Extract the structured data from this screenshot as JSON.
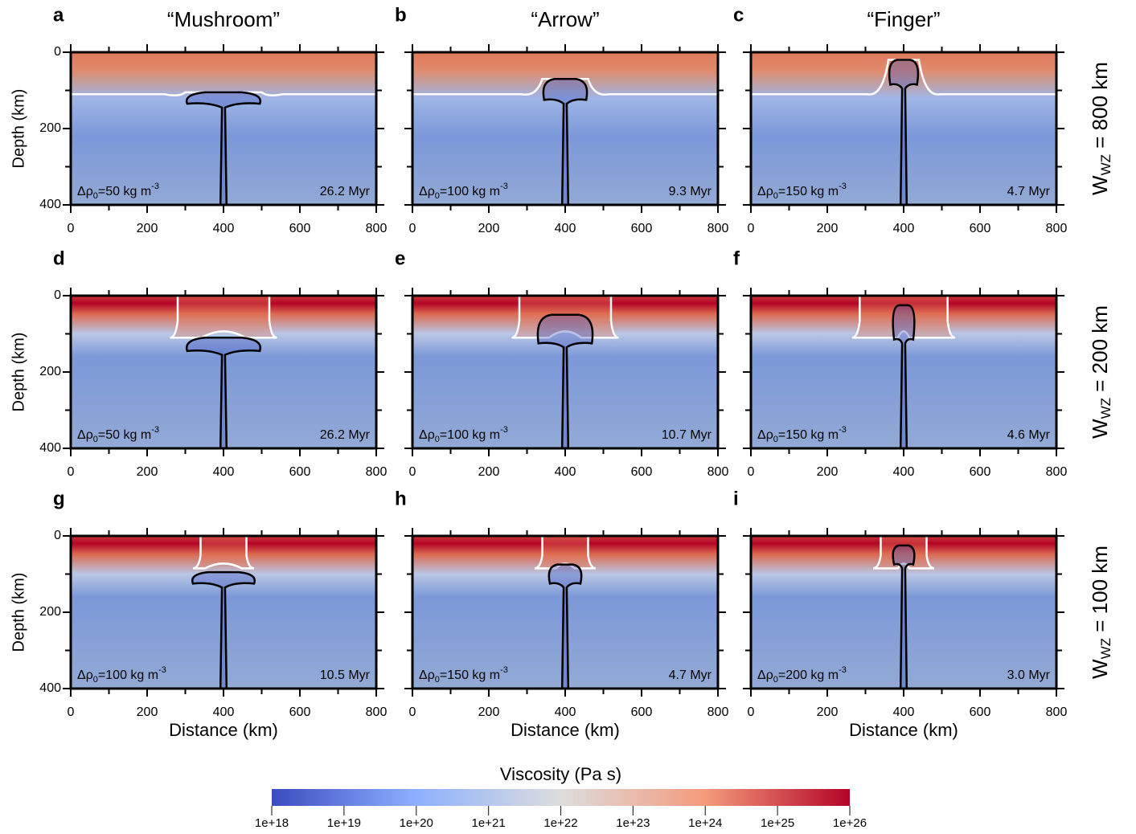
{
  "columns": [
    "“Mushroom”",
    "“Arrow”",
    "“Finger”"
  ],
  "rows": [
    {
      "main": "W",
      "sub": "WZ",
      "rest": " = 800 km"
    },
    {
      "main": "W",
      "sub": "WZ",
      "rest": " = 200 km"
    },
    {
      "main": "W",
      "sub": "WZ",
      "rest": " = 100 km"
    }
  ],
  "axes": {
    "xlabel": "Distance (km)",
    "ylabel": "Depth (km)",
    "xlim": [
      0,
      800
    ],
    "ylim": [
      0,
      400
    ],
    "xticks": [
      0,
      200,
      400,
      600,
      800
    ],
    "xticks_minor": [
      100,
      300,
      500,
      700
    ],
    "yticks": [
      0,
      200,
      400
    ],
    "yticks_minor": [
      100,
      300
    ]
  },
  "panels": [
    {
      "letter": "a",
      "drho": {
        "symbol": "Δρ",
        "sub": "0",
        "text": "=50 kg m",
        "sup": "-3"
      },
      "time": "26.2 Myr"
    },
    {
      "letter": "b",
      "drho": {
        "symbol": "Δρ",
        "sub": "0",
        "text": "=100 kg m",
        "sup": "-3"
      },
      "time": "9.3 Myr"
    },
    {
      "letter": "c",
      "drho": {
        "symbol": "Δρ",
        "sub": "0",
        "text": "=150 kg m",
        "sup": "-3"
      },
      "time": "4.7 Myr"
    },
    {
      "letter": "d",
      "drho": {
        "symbol": "Δρ",
        "sub": "0",
        "text": "=50 kg m",
        "sup": "-3"
      },
      "time": "26.2 Myr"
    },
    {
      "letter": "e",
      "drho": {
        "symbol": "Δρ",
        "sub": "0",
        "text": "=100 kg m",
        "sup": "-3"
      },
      "time": "10.7 Myr"
    },
    {
      "letter": "f",
      "drho": {
        "symbol": "Δρ",
        "sub": "0",
        "text": "=150 kg m",
        "sup": "-3"
      },
      "time": "4.6 Myr"
    },
    {
      "letter": "g",
      "drho": {
        "symbol": "Δρ",
        "sub": "0",
        "text": "=100 kg m",
        "sup": "-3"
      },
      "time": "10.5 Myr"
    },
    {
      "letter": "h",
      "drho": {
        "symbol": "Δρ",
        "sub": "0",
        "text": "=150 kg m",
        "sup": "-3"
      },
      "time": "4.7 Myr"
    },
    {
      "letter": "i",
      "drho": {
        "symbol": "Δρ",
        "sub": "0",
        "text": "=200 kg m",
        "sup": "-3"
      },
      "time": "3.0 Myr"
    }
  ],
  "colorbar": {
    "title": "Viscosity (Pa s)",
    "log": true,
    "lim": [
      1e+18,
      1e+26
    ],
    "ticks": [
      {
        "value": 1e+18,
        "label": "1e+18"
      },
      {
        "value": 1e+19,
        "label": "1e+19"
      },
      {
        "value": 1e+20,
        "label": "1e+20"
      },
      {
        "value": 1e+21,
        "label": "1e+21"
      },
      {
        "value": 1e+22,
        "label": "1e+22"
      },
      {
        "value": 1e+23,
        "label": "1e+23"
      },
      {
        "value": 1e+24,
        "label": "1e+24"
      },
      {
        "value": 1e+25,
        "label": "1e+25"
      },
      {
        "value": 1e+26,
        "label": "1e+26"
      }
    ]
  }
}
